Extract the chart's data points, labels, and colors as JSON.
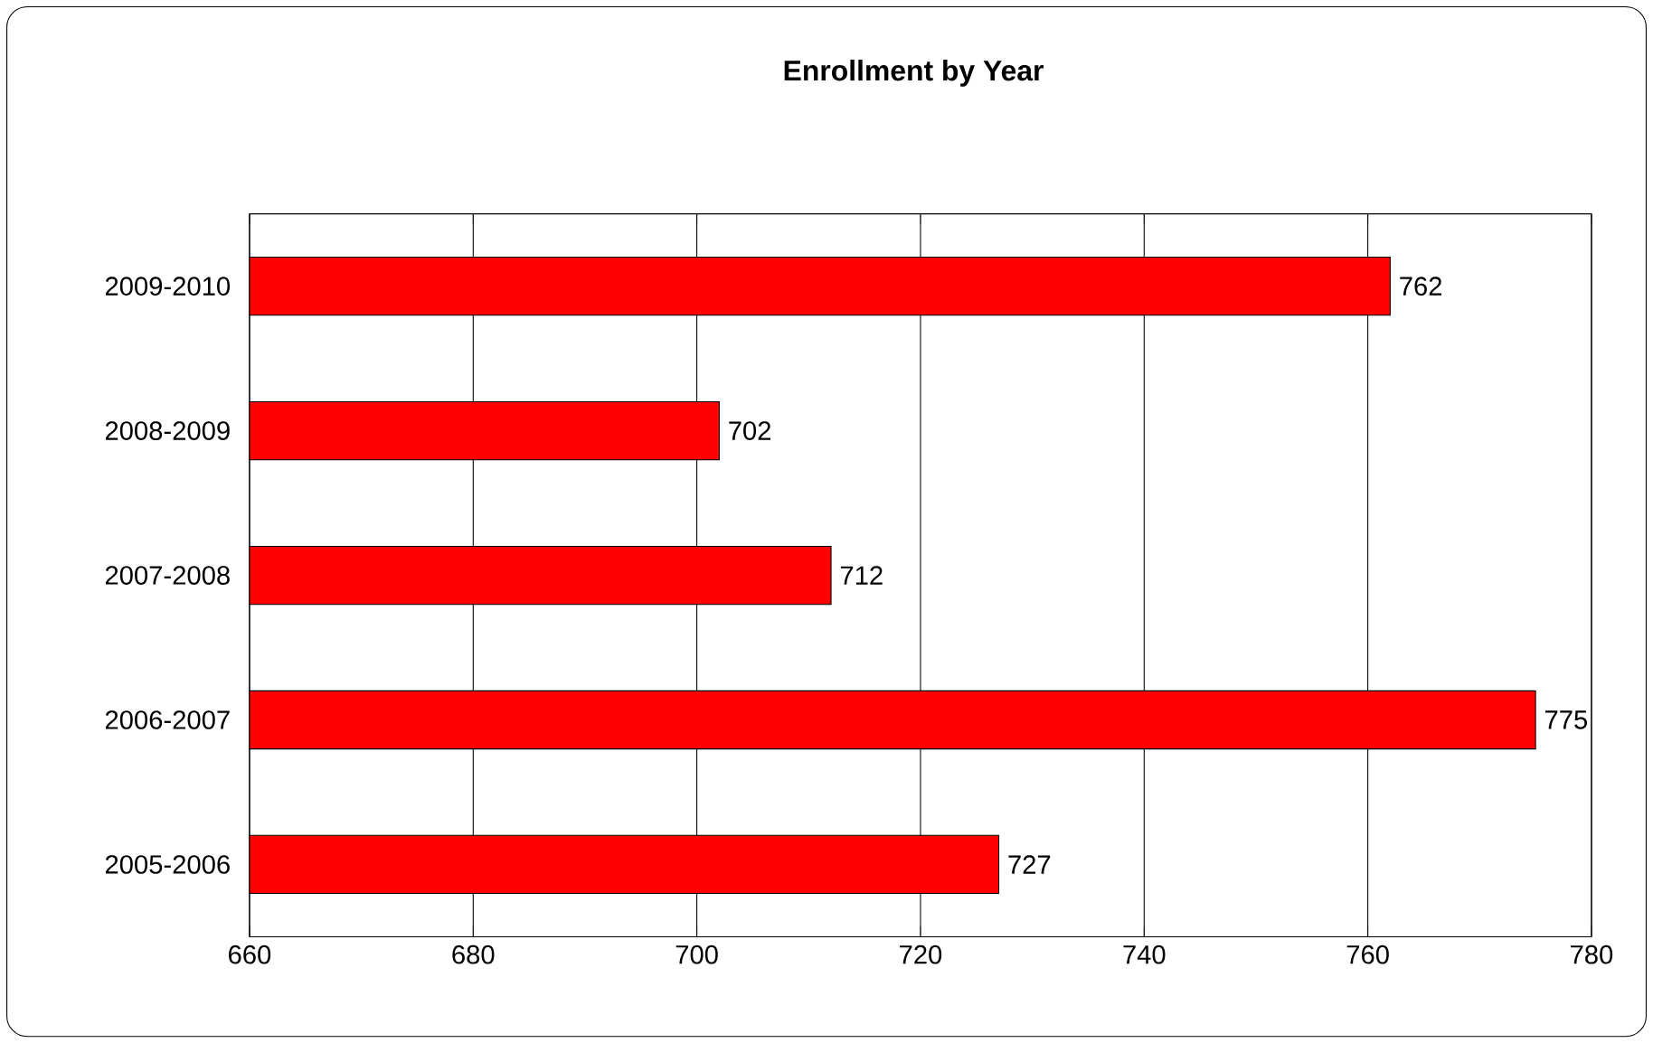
{
  "chart_data": {
    "type": "bar",
    "orientation": "horizontal",
    "title": "Enrollment by Year",
    "categories": [
      "2009-2010",
      "2008-2009",
      "2007-2008",
      "2006-2007",
      "2005-2006"
    ],
    "values": [
      762,
      702,
      712,
      775,
      727
    ],
    "color": "#ff0000",
    "xlim": [
      660,
      780
    ],
    "xticks": [
      660,
      680,
      700,
      720,
      740,
      760,
      780
    ],
    "grid": "x",
    "data_labels": true
  }
}
